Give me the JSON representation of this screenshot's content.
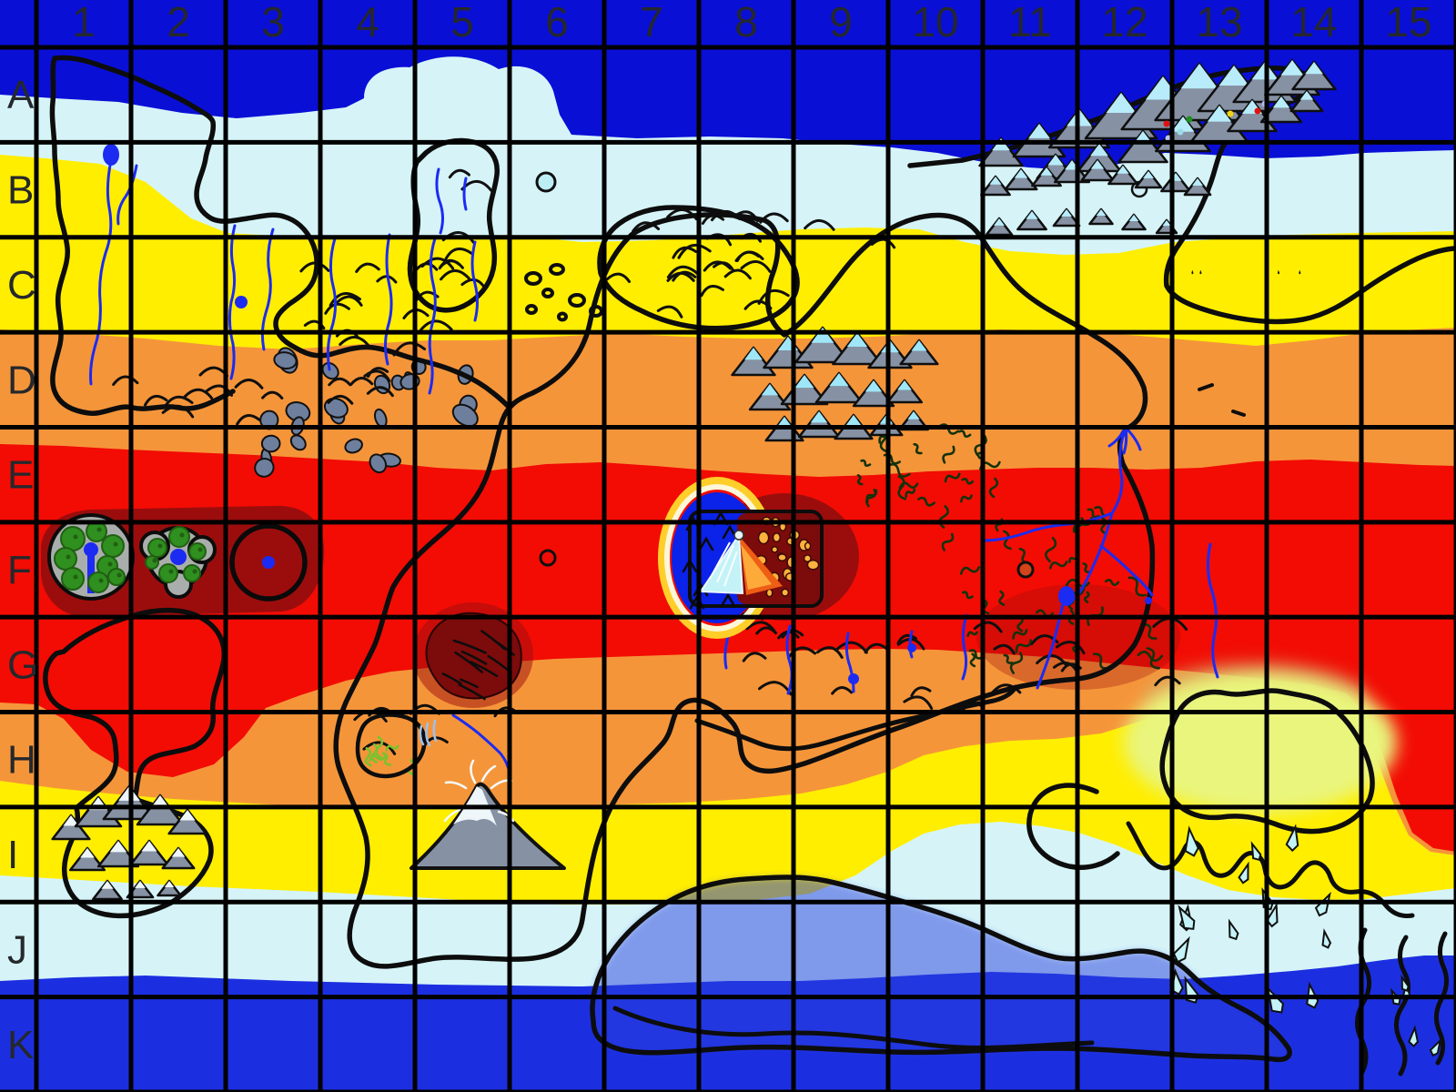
{
  "map": {
    "type": "fantasy-world-climate-map",
    "grid": {
      "columns": [
        "1",
        "2",
        "3",
        "4",
        "5",
        "6",
        "7",
        "8",
        "9",
        "10",
        "11",
        "12",
        "13",
        "14",
        "15"
      ],
      "rows": [
        "A",
        "B",
        "C",
        "D",
        "E",
        "F",
        "G",
        "H",
        "I",
        "J",
        "K"
      ],
      "line_color": "#000000",
      "label_color": "#25282c"
    },
    "climate_bands": [
      {
        "name": "north-polar",
        "color": "#0a0fd6"
      },
      {
        "name": "north-subpolar",
        "color": "#d6f4f8"
      },
      {
        "name": "north-temperate",
        "color": "#ffee00"
      },
      {
        "name": "north-subtropical",
        "color": "#f5953a"
      },
      {
        "name": "equatorial",
        "color": "#f20c04"
      },
      {
        "name": "south-subtropical",
        "color": "#f5953a"
      },
      {
        "name": "south-temperate",
        "color": "#ffee00"
      },
      {
        "name": "south-subpolar",
        "color": "#d6f4f8"
      },
      {
        "name": "south-polar",
        "color": "#1c2fe0"
      }
    ],
    "palette": {
      "coastline": "#0d0d0d",
      "river": "#1c2bf2",
      "lake": "#1c2bf2",
      "hot_zone": "#9b0d0d",
      "dark_hot_patch": "#7c0b0b",
      "warm_patch": "#e9f57d",
      "warm_patch_halo": "#cfa96b",
      "mountain_rock": "#8692a4",
      "mountain_snow": "#b8ecfa",
      "lone_peak_snow": "#eef6fa",
      "rock_field": "#6d7f9d",
      "forest": "#2f8f1f",
      "forest_dark": "#215f12",
      "island_rock": "#a9aeac",
      "iceberg": "#c3f3f6",
      "volcano_pool": "#0b22e8",
      "volcano_halo": "#ffd92b",
      "volcano_halo_inner": "#fdf6d8",
      "lava": "#ee5e14",
      "lava_bright": "#ffb23e",
      "vegetation": "#14320a",
      "oasis_green": "#7ac22e",
      "polar_landmass_tint": "#2a3fe0"
    },
    "features": [
      {
        "name": "continent-northwest",
        "cells": "A1-D4"
      },
      {
        "name": "highland-island",
        "cells": "B5"
      },
      {
        "name": "hill-island",
        "cells": "B7-C7"
      },
      {
        "name": "archipelago",
        "cells": "C6"
      },
      {
        "name": "continent-central",
        "cells": "C7-J9"
      },
      {
        "name": "continent-west",
        "cells": "G1-I2"
      },
      {
        "name": "continent-east-lobe",
        "cells": "E10-G12"
      },
      {
        "name": "continent-southeast",
        "cells": "G12-K15"
      },
      {
        "name": "landmass-south-polar",
        "cells": "J6-K9"
      },
      {
        "name": "forest-ring-island",
        "cells": "F1"
      },
      {
        "name": "forest-atoll",
        "cells": "F2"
      },
      {
        "name": "crater-ring-island",
        "cells": "F3"
      },
      {
        "name": "volcano-caldera",
        "cells": "F8"
      },
      {
        "name": "snow-mountain-range-north",
        "cells": "A11-B14"
      },
      {
        "name": "mountain-range-central",
        "cells": "D8-D9"
      },
      {
        "name": "mountain-range-west",
        "cells": "I1-I2"
      },
      {
        "name": "lone-peak",
        "cells": "I5"
      },
      {
        "name": "rock-scree-field",
        "cells": "D3-D4"
      },
      {
        "name": "oasis-grove",
        "cells": "H4"
      },
      {
        "name": "dark-forest-patch",
        "cells": "G5"
      },
      {
        "name": "iceberg-field",
        "cells": "J12-K14"
      },
      {
        "name": "fjord-coast",
        "cells": "K14-K15"
      }
    ]
  }
}
